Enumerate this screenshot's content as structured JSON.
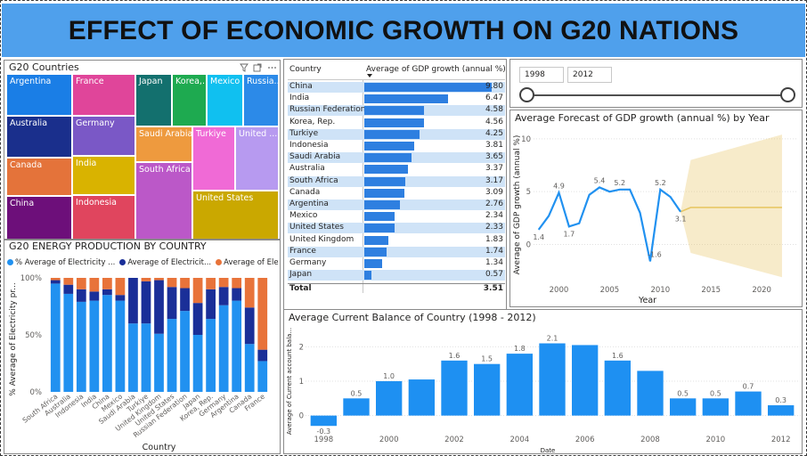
{
  "header": {
    "title": "EFFECT OF ECONOMIC GROWTH ON G20 NATIONS"
  },
  "treemap": {
    "title": "G20 Countries",
    "icons": [
      "filter-icon",
      "focus-mode-icon",
      "more-options-icon"
    ],
    "tiles": [
      {
        "label": "Argentina",
        "color": "#1a7ee6"
      },
      {
        "label": "France",
        "color": "#e0459a"
      },
      {
        "label": "Japan",
        "color": "#13706e"
      },
      {
        "label": "Korea,...",
        "color": "#1eaa50"
      },
      {
        "label": "Mexico",
        "color": "#10c0f0"
      },
      {
        "label": "Russia...",
        "color": "#2c8ae8"
      },
      {
        "label": "Australia",
        "color": "#1a2f8c"
      },
      {
        "label": "Germany",
        "color": "#7a58c6"
      },
      {
        "label": "Saudi Arabia",
        "color": "#ee9a3e"
      },
      {
        "label": "Turkiye",
        "color": "#f06ad6"
      },
      {
        "label": "United ...",
        "color": "#b79af0"
      },
      {
        "label": "Canada",
        "color": "#e4733a"
      },
      {
        "label": "India",
        "color": "#d9b300"
      },
      {
        "label": "South Africa",
        "color": "#bb58c8"
      },
      {
        "label": "United States",
        "color": "#caa800"
      },
      {
        "label": "China",
        "color": "#6d0f7a"
      },
      {
        "label": "Indonesia",
        "color": "#e0455e"
      }
    ]
  },
  "energy_chart": {
    "title": "G20 ENERGY PRODUCTION BY COUNTRY",
    "legend": [
      "% Average of Electricity ...",
      "Average of Electricit...",
      "Average of Ele..."
    ],
    "legend_colors": [
      "#2191f0",
      "#1a2f98",
      "#e8733a"
    ],
    "ylabel": "% Average of Electricity pr...",
    "xlabel": "Country",
    "yticks": [
      "100%",
      "50%",
      "0%"
    ]
  },
  "gdp_table": {
    "headers": [
      "Country",
      "Average of GDP growth (annual %)"
    ],
    "rows": [
      {
        "country": "China",
        "value": "9.80"
      },
      {
        "country": "India",
        "value": "6.47"
      },
      {
        "country": "Russian Federation",
        "value": "4.58"
      },
      {
        "country": "Korea, Rep.",
        "value": "4.56"
      },
      {
        "country": "Turkiye",
        "value": "4.25"
      },
      {
        "country": "Indonesia",
        "value": "3.81"
      },
      {
        "country": "Saudi Arabia",
        "value": "3.65"
      },
      {
        "country": "Australia",
        "value": "3.37"
      },
      {
        "country": "South Africa",
        "value": "3.17"
      },
      {
        "country": "Canada",
        "value": "3.09"
      },
      {
        "country": "Argentina",
        "value": "2.76"
      },
      {
        "country": "Mexico",
        "value": "2.34"
      },
      {
        "country": "United States",
        "value": "2.33"
      },
      {
        "country": "United Kingdom",
        "value": "1.83"
      },
      {
        "country": "France",
        "value": "1.74"
      },
      {
        "country": "Germany",
        "value": "1.34"
      },
      {
        "country": "Japan",
        "value": "0.57"
      }
    ],
    "total_label": "Total",
    "total_value": "3.51",
    "bar_color": "#2e7fe0",
    "stripe_color": "#cfe3f7"
  },
  "slicer": {
    "start": "1998",
    "end": "2012",
    "position_start": 0,
    "position_end": 1
  },
  "chart_data": [
    {
      "type": "bar",
      "title": "G20 ENERGY PRODUCTION BY COUNTRY",
      "stacked": true,
      "categories": [
        "South Africa",
        "Australia",
        "Indonesia",
        "India",
        "China",
        "Mexico",
        "Saudi Arabia",
        "Turkiye",
        "United Kingdom",
        "United States",
        "Russian Federation",
        "Japan",
        "Korea, Rep.",
        "Germany",
        "Argentina",
        "Canada",
        "France"
      ],
      "series": [
        {
          "name": "% Average of Electricity ...",
          "values": [
            95,
            86,
            79,
            80,
            85,
            80,
            60,
            60,
            51,
            64,
            71,
            50,
            64,
            76,
            80,
            42,
            27
          ]
        },
        {
          "name": "Average of Electricit...",
          "values": [
            3,
            8,
            11,
            8,
            5,
            5,
            40,
            37,
            47,
            28,
            20,
            28,
            26,
            16,
            11,
            32,
            10
          ]
        },
        {
          "name": "Average of Ele...",
          "values": [
            2,
            6,
            10,
            12,
            10,
            15,
            0,
            3,
            2,
            8,
            9,
            22,
            10,
            8,
            9,
            26,
            63
          ]
        }
      ],
      "ylabel": "% Average of Electricity pr...",
      "xlabel": "Country",
      "ylim": [
        0,
        100
      ],
      "legend": "top"
    },
    {
      "type": "line",
      "title": "Average Forecast of GDP growth (annual %) by Year",
      "x": [
        1998,
        1999,
        2000,
        2001,
        2002,
        2003,
        2004,
        2005,
        2006,
        2007,
        2008,
        2009,
        2010,
        2011,
        2012
      ],
      "y": [
        1.4,
        2.7,
        4.9,
        1.7,
        2.0,
        4.7,
        5.4,
        5.0,
        5.2,
        5.2,
        3.0,
        -1.6,
        5.2,
        4.5,
        3.1
      ],
      "point_labels": [
        {
          "x": 1998,
          "label": "1.4"
        },
        {
          "x": 2000,
          "label": "4.9"
        },
        {
          "x": 2001,
          "label": "1.7"
        },
        {
          "x": 2004,
          "label": "5.4"
        },
        {
          "x": 2006,
          "label": "5.2"
        },
        {
          "x": 2009,
          "label": "-1.6"
        },
        {
          "x": 2010,
          "label": "5.2"
        },
        {
          "x": 2012,
          "label": "3.1"
        }
      ],
      "forecast": {
        "x": [
          2012,
          2013,
          2022
        ],
        "y": [
          3.1,
          3.5,
          3.5
        ],
        "upper": [
          3.1,
          8.0,
          10.4
        ],
        "lower": [
          3.1,
          -0.8,
          -3.1
        ]
      },
      "xlabel": "Year",
      "ylabel": "Average of GDP growth (annual %)",
      "xticks": [
        2000,
        2005,
        2010,
        2015,
        2020
      ],
      "yticks": [
        0,
        5,
        10
      ],
      "xlim": [
        1997.5,
        2023.5
      ],
      "ylim": [
        -3.5,
        11
      ],
      "line_color": "#2191f0",
      "forecast_color": "#e8c766"
    },
    {
      "type": "bar",
      "title": "Average Current Balance of Country (1998 - 2012)",
      "categories": [
        "1998",
        "1999",
        "2000",
        "2001",
        "2002",
        "2003",
        "2004",
        "2005",
        "2006",
        "2007",
        "2008",
        "2009",
        "2010",
        "2011",
        "2012"
      ],
      "values": [
        -0.3,
        0.5,
        1.0,
        1.05,
        1.6,
        1.5,
        1.8,
        2.1,
        2.05,
        1.6,
        1.3,
        0.5,
        0.5,
        0.7,
        0.3
      ],
      "labels": [
        "-0.3",
        "0.5",
        "1.0",
        "",
        "1.6",
        "1.5",
        "1.8",
        "2.1",
        "",
        "1.6",
        "",
        "0.5",
        "0.5",
        "0.7",
        "0.3"
      ],
      "xticks": [
        "1998",
        "2000",
        "2002",
        "2004",
        "2006",
        "2008",
        "2010",
        "2012"
      ],
      "yticks": [
        0,
        1,
        2
      ],
      "ylim": [
        -0.45,
        2.45
      ],
      "xlabel": "Date",
      "ylabel": "Average of Current account bala...",
      "color": "#1e90f2"
    }
  ]
}
